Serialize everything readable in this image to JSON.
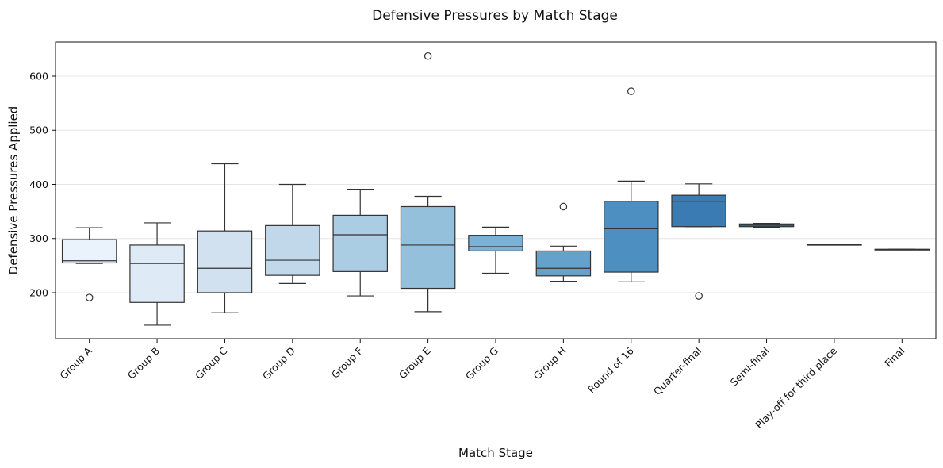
{
  "chart_data": {
    "type": "box",
    "title": "Defensive Pressures by Match Stage",
    "xlabel": "Match Stage",
    "ylabel": "Defensive Pressures Applied",
    "ylim": [
      115,
      663
    ],
    "yticks": [
      200,
      300,
      400,
      500,
      600
    ],
    "grid": "horizontal",
    "categories": [
      "Group A",
      "Group B",
      "Group C",
      "Group D",
      "Group F",
      "Group E",
      "Group G",
      "Group H",
      "Round of 16",
      "Quarter-final",
      "Semi-final",
      "Play-off for third place",
      "Final"
    ],
    "boxes": [
      {
        "category": "Group A",
        "whisker_low": 254,
        "q1": 255,
        "median": 259,
        "q3": 298,
        "whisker_high": 320,
        "outliers": [
          191
        ],
        "color": "#eaf2fb"
      },
      {
        "category": "Group B",
        "whisker_low": 140,
        "q1": 182,
        "median": 254,
        "q3": 288,
        "whisker_high": 329,
        "outliers": [],
        "color": "#deeaf6"
      },
      {
        "category": "Group C",
        "whisker_low": 163,
        "q1": 200,
        "median": 245,
        "q3": 314,
        "whisker_high": 438,
        "outliers": [],
        "color": "#d1e1f0"
      },
      {
        "category": "Group D",
        "whisker_low": 217,
        "q1": 232,
        "median": 260,
        "q3": 324,
        "whisker_high": 400,
        "outliers": [],
        "color": "#c0d8ea"
      },
      {
        "category": "Group F",
        "whisker_low": 194,
        "q1": 239,
        "median": 307,
        "q3": 343,
        "whisker_high": 391,
        "outliers": [],
        "color": "#abcde4"
      },
      {
        "category": "Group E",
        "whisker_low": 165,
        "q1": 208,
        "median": 288,
        "q3": 359,
        "whisker_high": 378,
        "outliers": [
          637
        ],
        "color": "#94c0dc"
      },
      {
        "category": "Group G",
        "whisker_low": 236,
        "q1": 277,
        "median": 285,
        "q3": 306,
        "whisker_high": 321,
        "outliers": [],
        "color": "#7cb1d5"
      },
      {
        "category": "Group H",
        "whisker_low": 221,
        "q1": 231,
        "median": 245,
        "q3": 277,
        "whisker_high": 286,
        "outliers": [
          359
        ],
        "color": "#64a2cc"
      },
      {
        "category": "Round of 16",
        "whisker_low": 220,
        "q1": 238,
        "median": 318,
        "q3": 369,
        "whisker_high": 406,
        "outliers": [
          572
        ],
        "color": "#4d8fc1"
      },
      {
        "category": "Quarter-final",
        "whisker_low": 322,
        "q1": 322,
        "median": 369,
        "q3": 380,
        "whisker_high": 401,
        "outliers": [
          194
        ],
        "color": "#3a7bb3"
      },
      {
        "category": "Semi-final",
        "whisker_low": 321,
        "q1": 322,
        "median": 325,
        "q3": 327,
        "whisker_high": 328,
        "outliers": [],
        "color": "#2b6aa6"
      },
      {
        "category": "Play-off for third place",
        "whisker_low": 289,
        "q1": 289,
        "median": 289,
        "q3": 289,
        "whisker_high": 289,
        "outliers": [],
        "color": "#205b97"
      },
      {
        "category": "Final",
        "whisker_low": 280,
        "q1": 280,
        "median": 280,
        "q3": 280,
        "whisker_high": 280,
        "outliers": [],
        "color": "#174c86"
      }
    ]
  }
}
